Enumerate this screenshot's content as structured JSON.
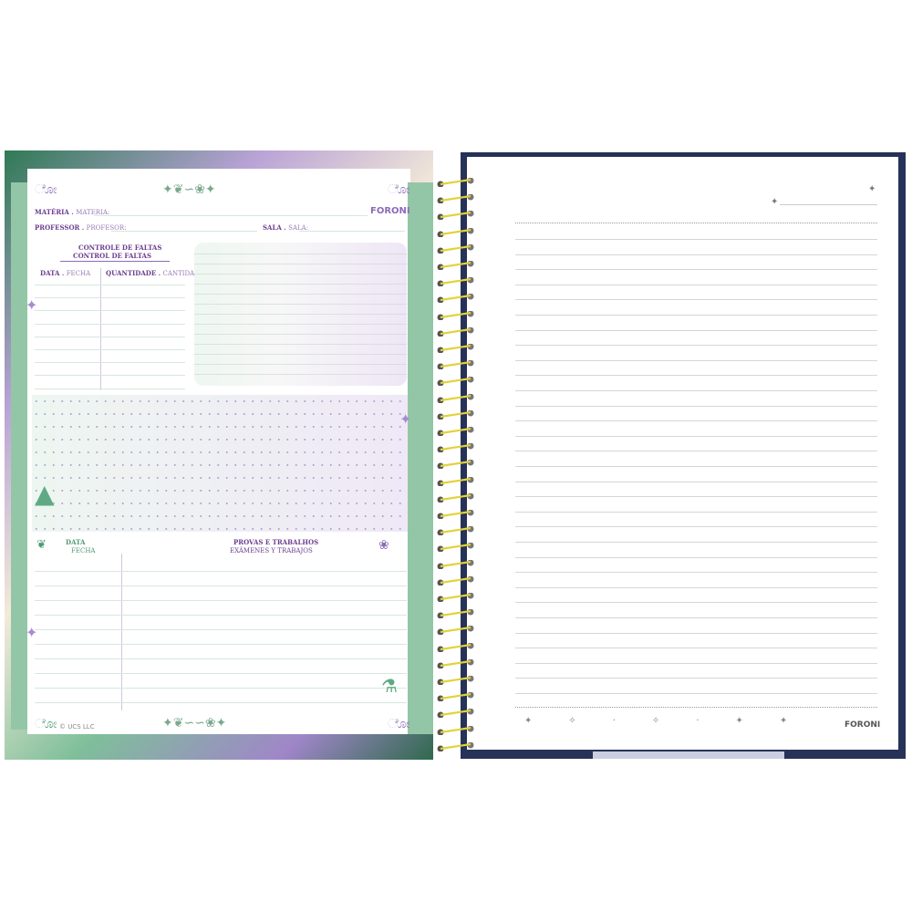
{
  "left_page": {
    "subject_label": "MATÉRIA",
    "subject_label_es": "MATERIA:",
    "teacher_label": "PROFESSOR",
    "teacher_label_es": "PROFESOR:",
    "room_label": "SALA",
    "room_label_es": "SALA:",
    "brand": "FORONI",
    "absence_title": "CONTROLE DE FALTAS",
    "absence_title_es": "CONTROL DE FALTAS",
    "date_header": "DATA",
    "date_header_es": "FECHA",
    "quantity_header": "QUANTIDADE",
    "quantity_header_es": "CANTIDAD",
    "exams_date": "DATA",
    "exams_date_es": "FECHA",
    "exams_title": "PROVAS E TRABALHOS",
    "exams_title_es": "EXÁMENES Y TRABAJOS",
    "copyright": "© UCS LLC"
  },
  "right_page": {
    "brand": "FORONI"
  },
  "colors": {
    "purple": "#6b3d8f",
    "green": "#4d9a72",
    "mint_strip": "#93c6a6",
    "navy_cover": "#263257",
    "spiral": "#e2d23a"
  }
}
